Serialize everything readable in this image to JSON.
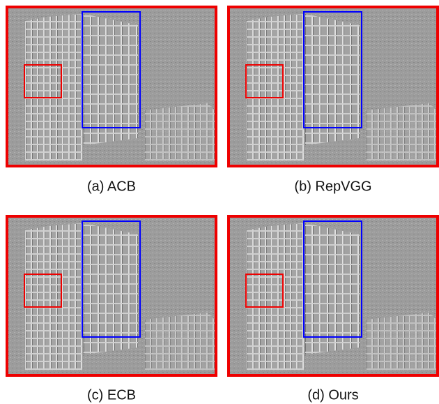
{
  "panels": [
    {
      "caption": "(a) ACB"
    },
    {
      "caption": "(b) RepVGG"
    },
    {
      "caption": "(c) ECB"
    },
    {
      "caption": "(d) Ours"
    }
  ]
}
